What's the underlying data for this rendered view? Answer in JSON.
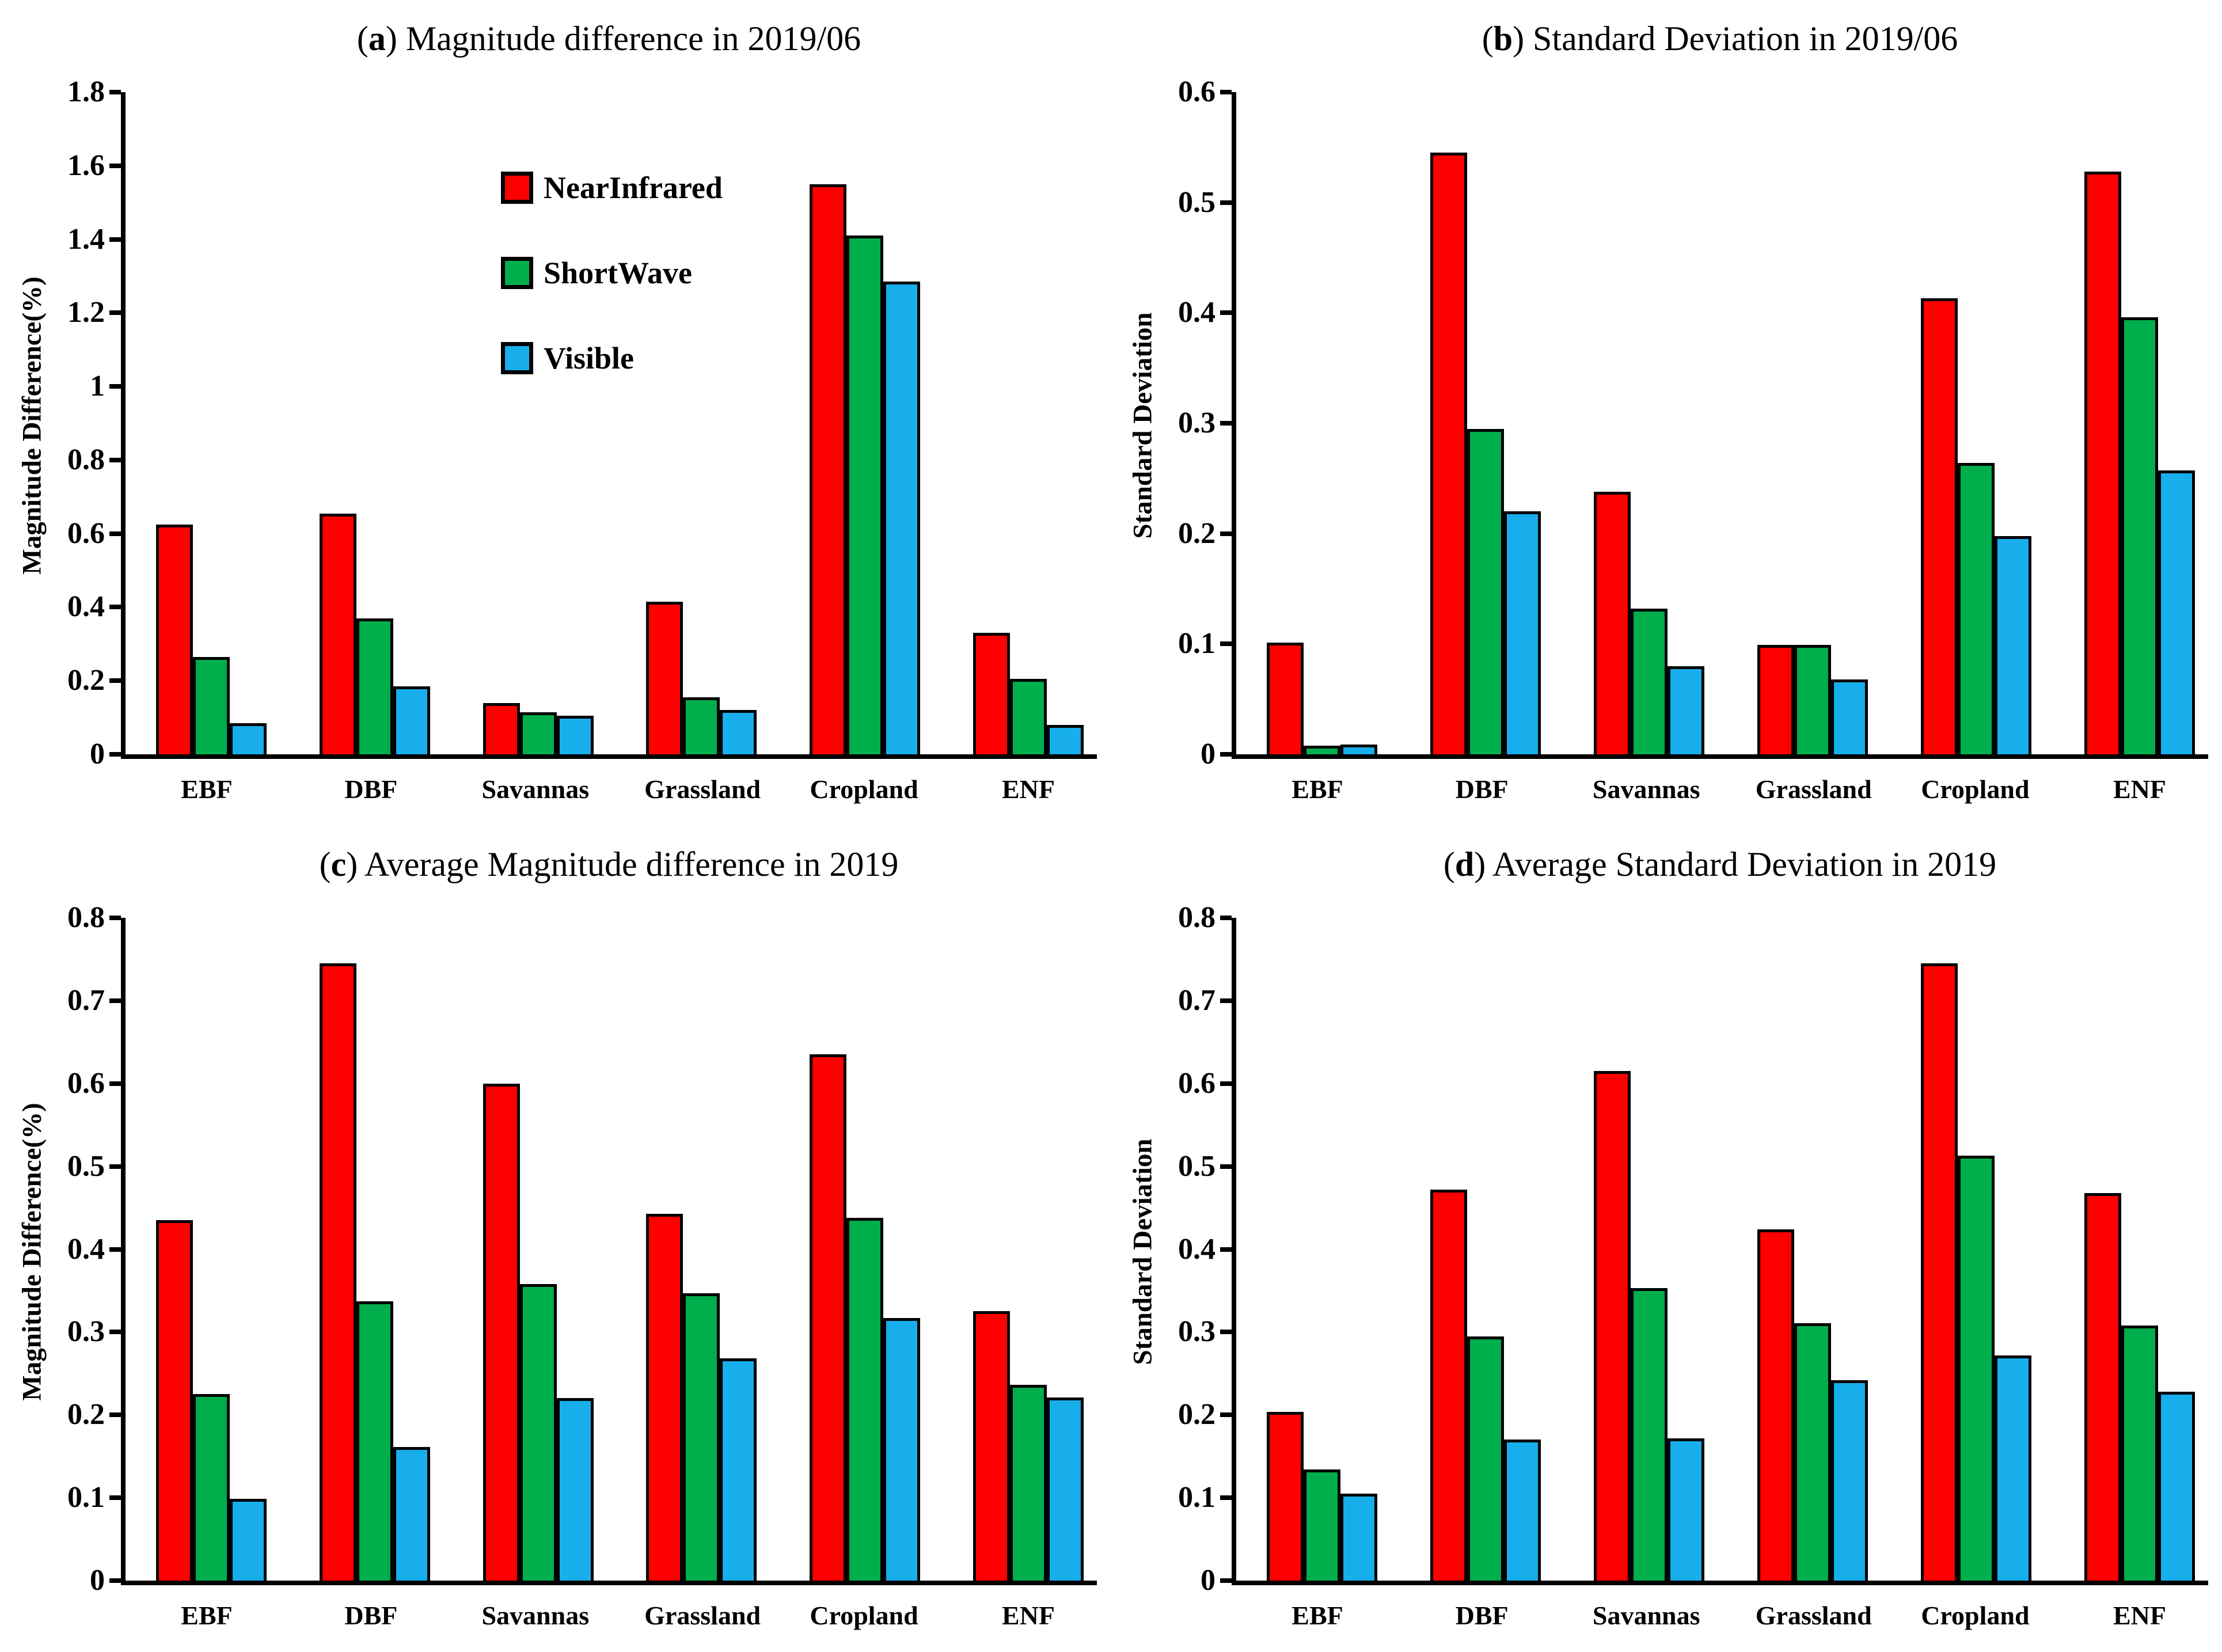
{
  "figure": {
    "background": "#ffffff",
    "layout": "2x2 grid of bar charts",
    "accent_colors": {
      "red": "#fe0000",
      "green": "#00ae4c",
      "blue": "#17aeeb",
      "outline": "#000000"
    }
  },
  "chart_data": [
    {
      "id": "a",
      "type": "bar",
      "title": "(a) Magnitude difference in 2019/06",
      "title_open": "(",
      "title_letter": "a",
      "title_close": ")",
      "title_rest": " Magnitude difference in 2019/06",
      "ylabel": "Magnitude Difference(%)",
      "xlabel": "",
      "ylim": [
        0,
        1.8
      ],
      "ytick_step": 0.2,
      "grid": false,
      "legend_position": "inside upper-center-left, panel (a) only",
      "categories": [
        "EBF",
        "DBF",
        "Savannas",
        "Grassland",
        "Cropland",
        "ENF"
      ],
      "series": [
        {
          "name": "NearInfrared",
          "color": "#fe0000",
          "values": [
            0.625,
            0.655,
            0.14,
            0.415,
            1.55,
            0.33
          ]
        },
        {
          "name": "ShortWave",
          "color": "#00ae4c",
          "values": [
            0.265,
            0.37,
            0.115,
            0.155,
            1.41,
            0.205
          ]
        },
        {
          "name": "Visible",
          "color": "#17aeeb",
          "values": [
            0.085,
            0.185,
            0.105,
            0.12,
            1.285,
            0.08
          ]
        }
      ]
    },
    {
      "id": "b",
      "type": "bar",
      "title": "(b) Standard Deviation in 2019/06",
      "title_open": "(",
      "title_letter": "b",
      "title_close": ")",
      "title_rest": " Standard Deviation in 2019/06",
      "ylabel": "Standard Deviation",
      "xlabel": "",
      "ylim": [
        0,
        0.6
      ],
      "ytick_step": 0.1,
      "grid": false,
      "categories": [
        "EBF",
        "DBF",
        "Savannas",
        "Grassland",
        "Cropland",
        "ENF"
      ],
      "series": [
        {
          "name": "NearInfrared",
          "color": "#fe0000",
          "values": [
            0.101,
            0.545,
            0.238,
            0.099,
            0.413,
            0.528
          ]
        },
        {
          "name": "ShortWave",
          "color": "#00ae4c",
          "values": [
            0.008,
            0.295,
            0.132,
            0.099,
            0.264,
            0.396
          ]
        },
        {
          "name": "Visible",
          "color": "#17aeeb",
          "values": [
            0.009,
            0.22,
            0.08,
            0.068,
            0.198,
            0.257
          ]
        }
      ]
    },
    {
      "id": "c",
      "type": "bar",
      "title": "(c) Average Magnitude difference in 2019",
      "title_open": "(",
      "title_letter": "c",
      "title_close": ")",
      "title_rest": " Average Magnitude difference in 2019",
      "ylabel": "Magnitude Difference(%)",
      "xlabel": "",
      "ylim": [
        0,
        0.8
      ],
      "ytick_step": 0.1,
      "grid": false,
      "categories": [
        "EBF",
        "DBF",
        "Savannas",
        "Grassland",
        "Cropland",
        "ENF"
      ],
      "series": [
        {
          "name": "NearInfrared",
          "color": "#fe0000",
          "values": [
            0.435,
            0.745,
            0.6,
            0.443,
            0.635,
            0.325
          ]
        },
        {
          "name": "ShortWave",
          "color": "#00ae4c",
          "values": [
            0.225,
            0.337,
            0.358,
            0.347,
            0.438,
            0.236
          ]
        },
        {
          "name": "Visible",
          "color": "#17aeeb",
          "values": [
            0.099,
            0.161,
            0.22,
            0.268,
            0.317,
            0.221
          ]
        }
      ]
    },
    {
      "id": "d",
      "type": "bar",
      "title": "(d) Average Standard Deviation in 2019",
      "title_open": "(",
      "title_letter": "d",
      "title_close": ")",
      "title_rest": " Average Standard Deviation in 2019",
      "ylabel": "Standard Deviation",
      "xlabel": "",
      "ylim": [
        0,
        0.8
      ],
      "ytick_step": 0.1,
      "grid": false,
      "categories": [
        "EBF",
        "DBF",
        "Savannas",
        "Grassland",
        "Cropland",
        "ENF"
      ],
      "series": [
        {
          "name": "NearInfrared",
          "color": "#fe0000",
          "values": [
            0.204,
            0.472,
            0.615,
            0.424,
            0.745,
            0.468
          ]
        },
        {
          "name": "ShortWave",
          "color": "#00ae4c",
          "values": [
            0.134,
            0.295,
            0.353,
            0.311,
            0.513,
            0.308
          ]
        },
        {
          "name": "Visible",
          "color": "#17aeeb",
          "values": [
            0.105,
            0.17,
            0.172,
            0.242,
            0.272,
            0.228
          ]
        }
      ]
    }
  ]
}
